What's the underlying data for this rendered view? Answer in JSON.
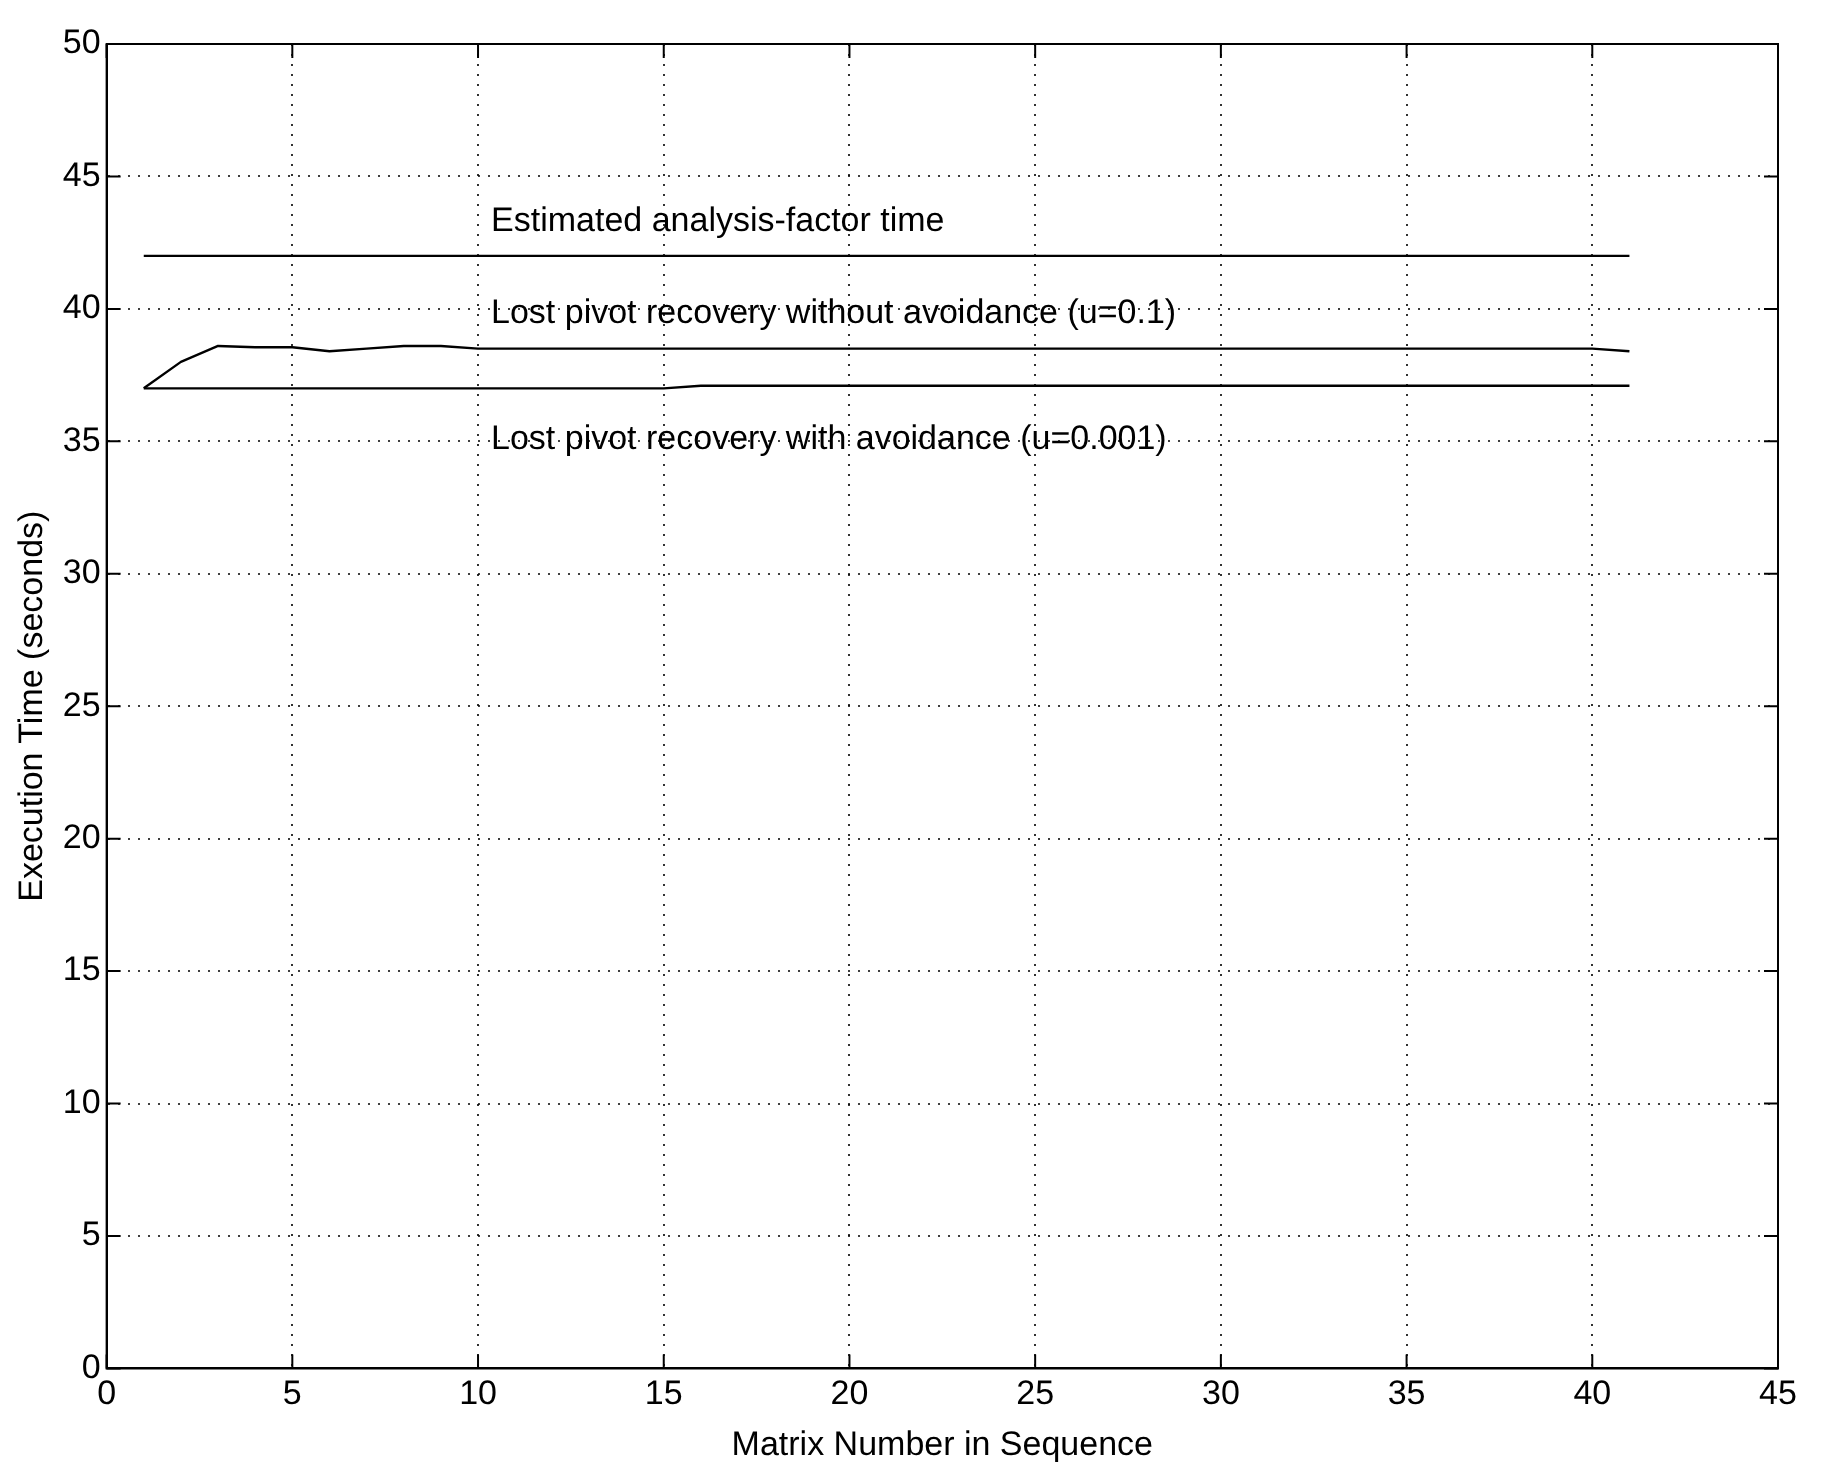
{
  "chart_data": {
    "type": "line",
    "xlabel": "Matrix Number in Sequence",
    "ylabel": "Execution Time (seconds)",
    "xlim": [
      0,
      45
    ],
    "xticks": [
      0,
      5,
      10,
      15,
      20,
      25,
      30,
      35,
      40,
      45
    ],
    "ylim": [
      0,
      50
    ],
    "yticks": [
      0,
      5,
      10,
      15,
      20,
      25,
      30,
      35,
      40,
      45,
      50
    ],
    "grid": true,
    "legend": false,
    "marker": "none",
    "line_style": "solid",
    "series": [
      {
        "color": "#000000",
        "x": [
          1,
          41
        ],
        "values": [
          42,
          42
        ]
      },
      {
        "color": "#000000",
        "x": [
          1,
          2,
          3,
          4,
          5,
          6,
          7,
          8,
          9,
          10,
          15,
          20,
          25,
          30,
          35,
          40,
          41
        ],
        "values": [
          37.0,
          38.0,
          38.6,
          38.55,
          38.55,
          38.4,
          38.5,
          38.6,
          38.6,
          38.5,
          38.5,
          38.5,
          38.5,
          38.5,
          38.5,
          38.5,
          38.4
        ]
      },
      {
        "color": "#000000",
        "x": [
          1,
          15,
          16,
          41
        ],
        "values": [
          37.0,
          37.0,
          37.1,
          37.1
        ]
      }
    ],
    "annotations": [
      "Estimated analysis-factor time",
      "Lost pivot recovery without avoidance (u=0.1)",
      "Lost pivot recovery with avoidance (u=0.001)"
    ]
  }
}
